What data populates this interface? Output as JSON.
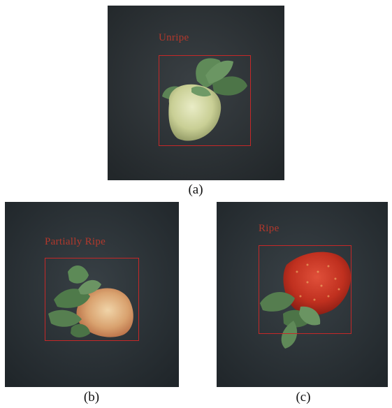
{
  "figure": {
    "panels": [
      {
        "id": "a",
        "caption": "(a)",
        "detection_label": "Unripe",
        "label_color": "#c0392b",
        "box_color": "#c62828"
      },
      {
        "id": "b",
        "caption": "(b)",
        "detection_label": "Partially Ripe",
        "label_color": "#c0392b",
        "box_color": "#c62828"
      },
      {
        "id": "c",
        "caption": "(c)",
        "detection_label": "Ripe",
        "label_color": "#c0392b",
        "box_color": "#c62828"
      }
    ]
  }
}
